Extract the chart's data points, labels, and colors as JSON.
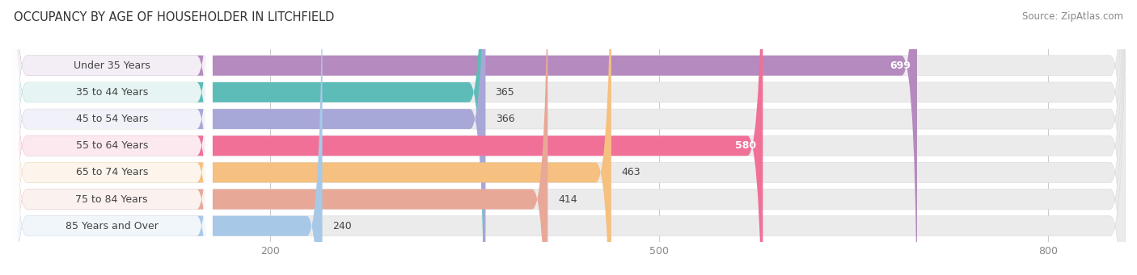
{
  "title": "OCCUPANCY BY AGE OF HOUSEHOLDER IN LITCHFIELD",
  "source": "Source: ZipAtlas.com",
  "categories": [
    "Under 35 Years",
    "35 to 44 Years",
    "45 to 54 Years",
    "55 to 64 Years",
    "65 to 74 Years",
    "75 to 84 Years",
    "85 Years and Over"
  ],
  "values": [
    699,
    365,
    366,
    580,
    463,
    414,
    240
  ],
  "bar_colors": [
    "#b58abf",
    "#5dbcb8",
    "#a8a8d8",
    "#f07098",
    "#f5c080",
    "#e8a898",
    "#a8c8e8"
  ],
  "label_colors": [
    "white",
    "black",
    "black",
    "white",
    "black",
    "black",
    "black"
  ],
  "xlim_max": 860,
  "xticks": [
    200,
    500,
    800
  ],
  "bg_color": "#ffffff",
  "row_bg_color": "#ebebeb",
  "title_fontsize": 10.5,
  "source_fontsize": 8.5,
  "label_fontsize": 9,
  "value_fontsize": 9
}
